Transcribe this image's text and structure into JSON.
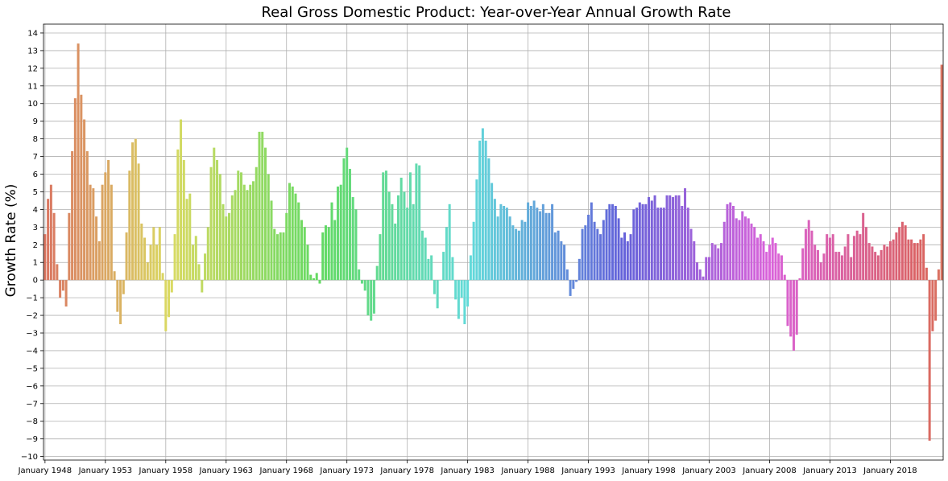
{
  "chart_data": {
    "type": "bar",
    "title": "Real Gross Domestic Product: Year-over-Year Annual Growth Rate",
    "xlabel": "",
    "ylabel": "Growth Rate (%)",
    "ylim": [
      -10.2,
      14.5
    ],
    "yticks": [
      -10,
      -9,
      -8,
      -7,
      -6,
      -5,
      -4,
      -3,
      -2,
      -1,
      0,
      1,
      2,
      3,
      4,
      5,
      6,
      7,
      8,
      9,
      10,
      11,
      12,
      13,
      14
    ],
    "grid": true,
    "frequency": "quarterly",
    "start": "January 1948",
    "x_tick_labels": [
      "January 1948",
      "January 1953",
      "January 1958",
      "January 1963",
      "January 1968",
      "January 1973",
      "January 1978",
      "January 1983",
      "January 1988",
      "January 1993",
      "January 1998",
      "January 2003",
      "January 2008",
      "January 2013",
      "January 2018"
    ],
    "values": [
      2.6,
      4.6,
      5.4,
      3.8,
      0.9,
      -1.0,
      -0.6,
      -1.5,
      3.8,
      7.3,
      10.3,
      13.4,
      10.5,
      9.1,
      7.3,
      5.4,
      5.2,
      3.6,
      2.2,
      5.4,
      6.1,
      6.8,
      5.4,
      0.5,
      -1.8,
      -2.5,
      -0.8,
      2.7,
      6.2,
      7.8,
      8.0,
      6.6,
      3.2,
      2.4,
      1.0,
      2.0,
      3.0,
      2.0,
      3.0,
      0.4,
      -2.9,
      -2.1,
      -0.7,
      2.6,
      7.4,
      9.1,
      6.8,
      4.6,
      4.9,
      2.0,
      2.5,
      0.9,
      -0.7,
      1.5,
      3.0,
      6.4,
      7.5,
      6.8,
      6.0,
      4.3,
      3.6,
      3.8,
      4.8,
      5.1,
      6.2,
      6.1,
      5.4,
      5.1,
      5.4,
      5.6,
      6.4,
      8.4,
      8.4,
      7.5,
      6.0,
      4.5,
      2.9,
      2.6,
      2.7,
      2.7,
      3.8,
      5.5,
      5.3,
      4.9,
      4.4,
      3.4,
      3.0,
      2.0,
      0.3,
      0.1,
      0.4,
      -0.2,
      2.7,
      3.1,
      3.0,
      4.4,
      3.4,
      5.3,
      5.4,
      6.9,
      7.5,
      6.3,
      4.7,
      4.0,
      0.6,
      -0.2,
      -0.6,
      -2.0,
      -2.3,
      -1.9,
      0.8,
      2.6,
      6.1,
      6.2,
      5.0,
      4.3,
      3.2,
      4.8,
      5.8,
      5.0,
      4.1,
      6.1,
      4.3,
      6.6,
      6.5,
      2.8,
      2.4,
      1.2,
      1.4,
      -0.8,
      -1.6,
      0.0,
      1.6,
      3.0,
      4.3,
      1.3,
      -1.1,
      -2.2,
      -1.0,
      -2.5,
      -1.5,
      1.4,
      3.3,
      5.7,
      7.9,
      8.6,
      7.9,
      6.9,
      5.5,
      4.6,
      3.6,
      4.3,
      4.2,
      4.1,
      3.6,
      3.1,
      2.9,
      2.8,
      3.4,
      3.3,
      4.4,
      4.2,
      4.5,
      4.1,
      3.9,
      4.3,
      3.8,
      3.8,
      4.3,
      2.7,
      2.8,
      2.2,
      2.0,
      0.6,
      -0.9,
      -0.5,
      -0.1,
      1.2,
      2.9,
      3.1,
      3.7,
      4.4,
      3.3,
      2.9,
      2.6,
      3.4,
      4.0,
      4.3,
      4.3,
      4.2,
      3.5,
      2.4,
      2.7,
      2.2,
      2.6,
      4.0,
      4.1,
      4.4,
      4.3,
      4.3,
      4.7,
      4.5,
      4.8,
      4.1,
      4.1,
      4.1,
      4.8,
      4.8,
      4.7,
      4.8,
      4.8,
      4.2,
      5.2,
      4.1,
      2.9,
      2.2,
      1.0,
      0.6,
      0.2,
      1.3,
      1.3,
      2.1,
      2.0,
      1.8,
      2.1,
      3.3,
      4.3,
      4.4,
      4.2,
      3.5,
      3.4,
      3.9,
      3.6,
      3.5,
      3.2,
      3.0,
      2.4,
      2.6,
      2.2,
      1.6,
      2.0,
      2.4,
      2.1,
      1.5,
      1.4,
      0.3,
      -2.6,
      -3.2,
      -4.0,
      -3.1,
      0.1,
      1.8,
      2.9,
      3.4,
      2.8,
      2.0,
      1.7,
      1.0,
      1.5,
      2.6,
      2.4,
      2.6,
      1.6,
      1.6,
      1.4,
      1.9,
      2.6,
      1.3,
      2.5,
      2.8,
      2.6,
      3.8,
      3.0,
      2.1,
      1.9,
      1.6,
      1.4,
      1.7,
      2.0,
      1.9,
      2.2,
      2.3,
      2.7,
      3.0,
      3.3,
      3.1,
      2.3,
      2.3,
      2.1,
      2.1,
      2.3,
      2.6,
      0.7,
      -9.1,
      -2.9,
      -2.3,
      0.6,
      12.2
    ]
  }
}
